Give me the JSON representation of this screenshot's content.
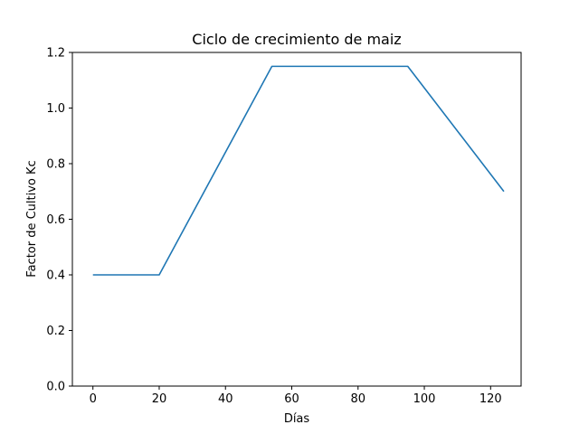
{
  "chart_data": {
    "type": "line",
    "title": "Ciclo de crecimiento de maiz",
    "xlabel": "Días",
    "ylabel": "Factor de Cultivo Kc",
    "xlim": [
      -6.2,
      129.2
    ],
    "ylim": [
      0.0,
      1.2
    ],
    "xticks": [
      0,
      20,
      40,
      60,
      80,
      100,
      120
    ],
    "xtick_labels": [
      "0",
      "20",
      "40",
      "60",
      "80",
      "100",
      "120"
    ],
    "yticks": [
      0.0,
      0.2,
      0.4,
      0.6,
      0.8,
      1.0,
      1.2
    ],
    "ytick_labels": [
      "0.0",
      "0.2",
      "0.4",
      "0.6",
      "0.8",
      "1.0",
      "1.2"
    ],
    "grid": false,
    "series": [
      {
        "color": "#1f77b4",
        "x": [
          0,
          20,
          54,
          95,
          124
        ],
        "y": [
          0.4,
          0.4,
          1.15,
          1.15,
          0.7
        ]
      }
    ]
  }
}
